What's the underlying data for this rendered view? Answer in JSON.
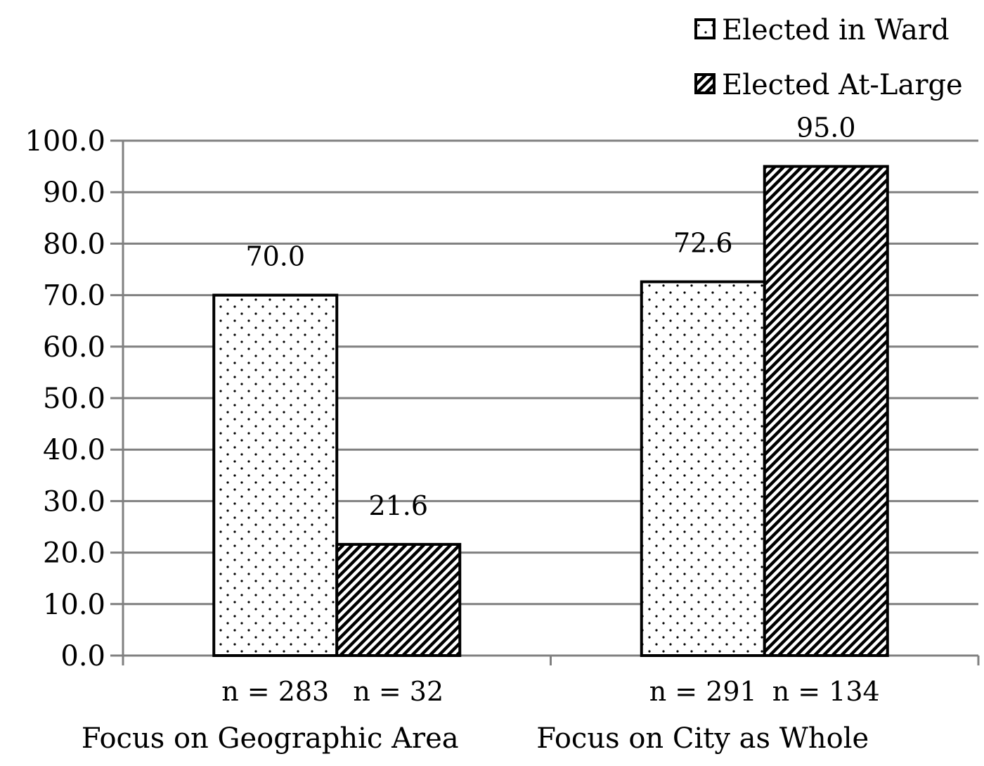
{
  "chart_data": {
    "type": "bar",
    "title": "",
    "xlabel": "",
    "ylabel": "",
    "ylim": [
      0,
      100
    ],
    "yticks": [
      "0.0",
      "10.0",
      "20.0",
      "30.0",
      "40.0",
      "50.0",
      "60.0",
      "70.0",
      "80.0",
      "90.0",
      "100.0"
    ],
    "grid": true,
    "legend_position": "top-right",
    "categories": [
      "Focus on Geographic Area",
      "Focus on City as Whole"
    ],
    "series": [
      {
        "name": "Elected in Ward",
        "pattern": "dots",
        "values": [
          70.0,
          72.6
        ],
        "labels": [
          "70.0",
          "72.6"
        ],
        "n": [
          "n = 283",
          "n = 291"
        ]
      },
      {
        "name": "Elected At-Large",
        "pattern": "diagonal-stripes",
        "values": [
          21.6,
          95.0
        ],
        "labels": [
          "21.6",
          "95.0"
        ],
        "n": [
          "n = 32",
          "n = 134"
        ]
      }
    ]
  },
  "colors": {
    "grid": "#808080",
    "bar_outline": "#000000",
    "background": "#ffffff"
  }
}
